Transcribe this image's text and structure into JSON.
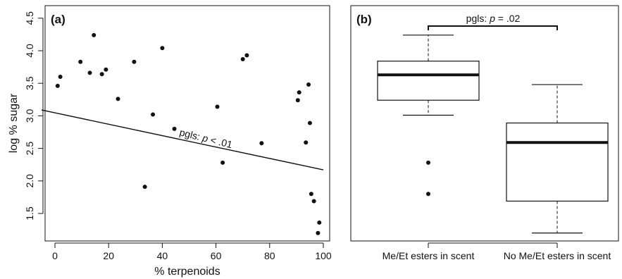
{
  "chart_data": [
    {
      "panel_label": "(a)",
      "type": "scatter",
      "xlabel": "% terpenoids",
      "ylabel": "log % sugar",
      "xlim": [
        0,
        100
      ],
      "ylim": [
        1.1,
        4.55
      ],
      "x_ticks": [
        0,
        20,
        40,
        60,
        80,
        100
      ],
      "y_ticks": [
        1.5,
        2.0,
        2.5,
        3.0,
        3.5,
        4.0,
        4.5
      ],
      "x_tick_labels": [
        "0",
        "20",
        "40",
        "60",
        "80",
        "100"
      ],
      "y_tick_labels": [
        "1.5",
        "2.0",
        "2.5",
        "3.0",
        "3.5",
        "4.0",
        "4.5"
      ],
      "points": [
        {
          "x": 1,
          "y": 3.46
        },
        {
          "x": 2,
          "y": 3.6
        },
        {
          "x": 9.5,
          "y": 3.83
        },
        {
          "x": 13,
          "y": 3.66
        },
        {
          "x": 14.5,
          "y": 4.24
        },
        {
          "x": 17.5,
          "y": 3.64
        },
        {
          "x": 19,
          "y": 3.71
        },
        {
          "x": 23.5,
          "y": 3.26
        },
        {
          "x": 29.5,
          "y": 3.83
        },
        {
          "x": 33.5,
          "y": 1.91
        },
        {
          "x": 36.5,
          "y": 3.02
        },
        {
          "x": 40,
          "y": 4.04
        },
        {
          "x": 44.5,
          "y": 2.8
        },
        {
          "x": 60.5,
          "y": 3.14
        },
        {
          "x": 62.5,
          "y": 2.28
        },
        {
          "x": 70,
          "y": 3.87
        },
        {
          "x": 71.5,
          "y": 3.93
        },
        {
          "x": 77,
          "y": 2.58
        },
        {
          "x": 90.5,
          "y": 3.24
        },
        {
          "x": 91,
          "y": 3.36
        },
        {
          "x": 93.5,
          "y": 2.59
        },
        {
          "x": 94.5,
          "y": 3.48
        },
        {
          "x": 95,
          "y": 2.89
        },
        {
          "x": 95.5,
          "y": 1.8
        },
        {
          "x": 96.5,
          "y": 1.69
        },
        {
          "x": 98,
          "y": 1.2
        },
        {
          "x": 98.5,
          "y": 1.36
        }
      ],
      "fit_line": {
        "x": [
          -5,
          100
        ],
        "y": [
          3.09,
          2.17
        ]
      },
      "annotation": {
        "prefix": "pgls: ",
        "p": "p",
        "rest": " < .01"
      }
    },
    {
      "panel_label": "(b)",
      "type": "boxplot",
      "categories": [
        "Me/Et esters in scent",
        "No Me/Et esters in scent"
      ],
      "ylim": [
        1.1,
        4.55
      ],
      "boxes": [
        {
          "whisker_low": 3.01,
          "q1": 3.24,
          "median": 3.63,
          "q3": 3.84,
          "whisker_high": 4.24,
          "outliers": [
            2.28,
            1.8
          ]
        },
        {
          "whisker_low": 1.2,
          "q1": 1.69,
          "median": 2.59,
          "q3": 2.89,
          "whisker_high": 3.48,
          "outliers": []
        }
      ],
      "annotation": {
        "prefix": "pgls: ",
        "p": "p",
        "rest": " = .02"
      }
    }
  ]
}
